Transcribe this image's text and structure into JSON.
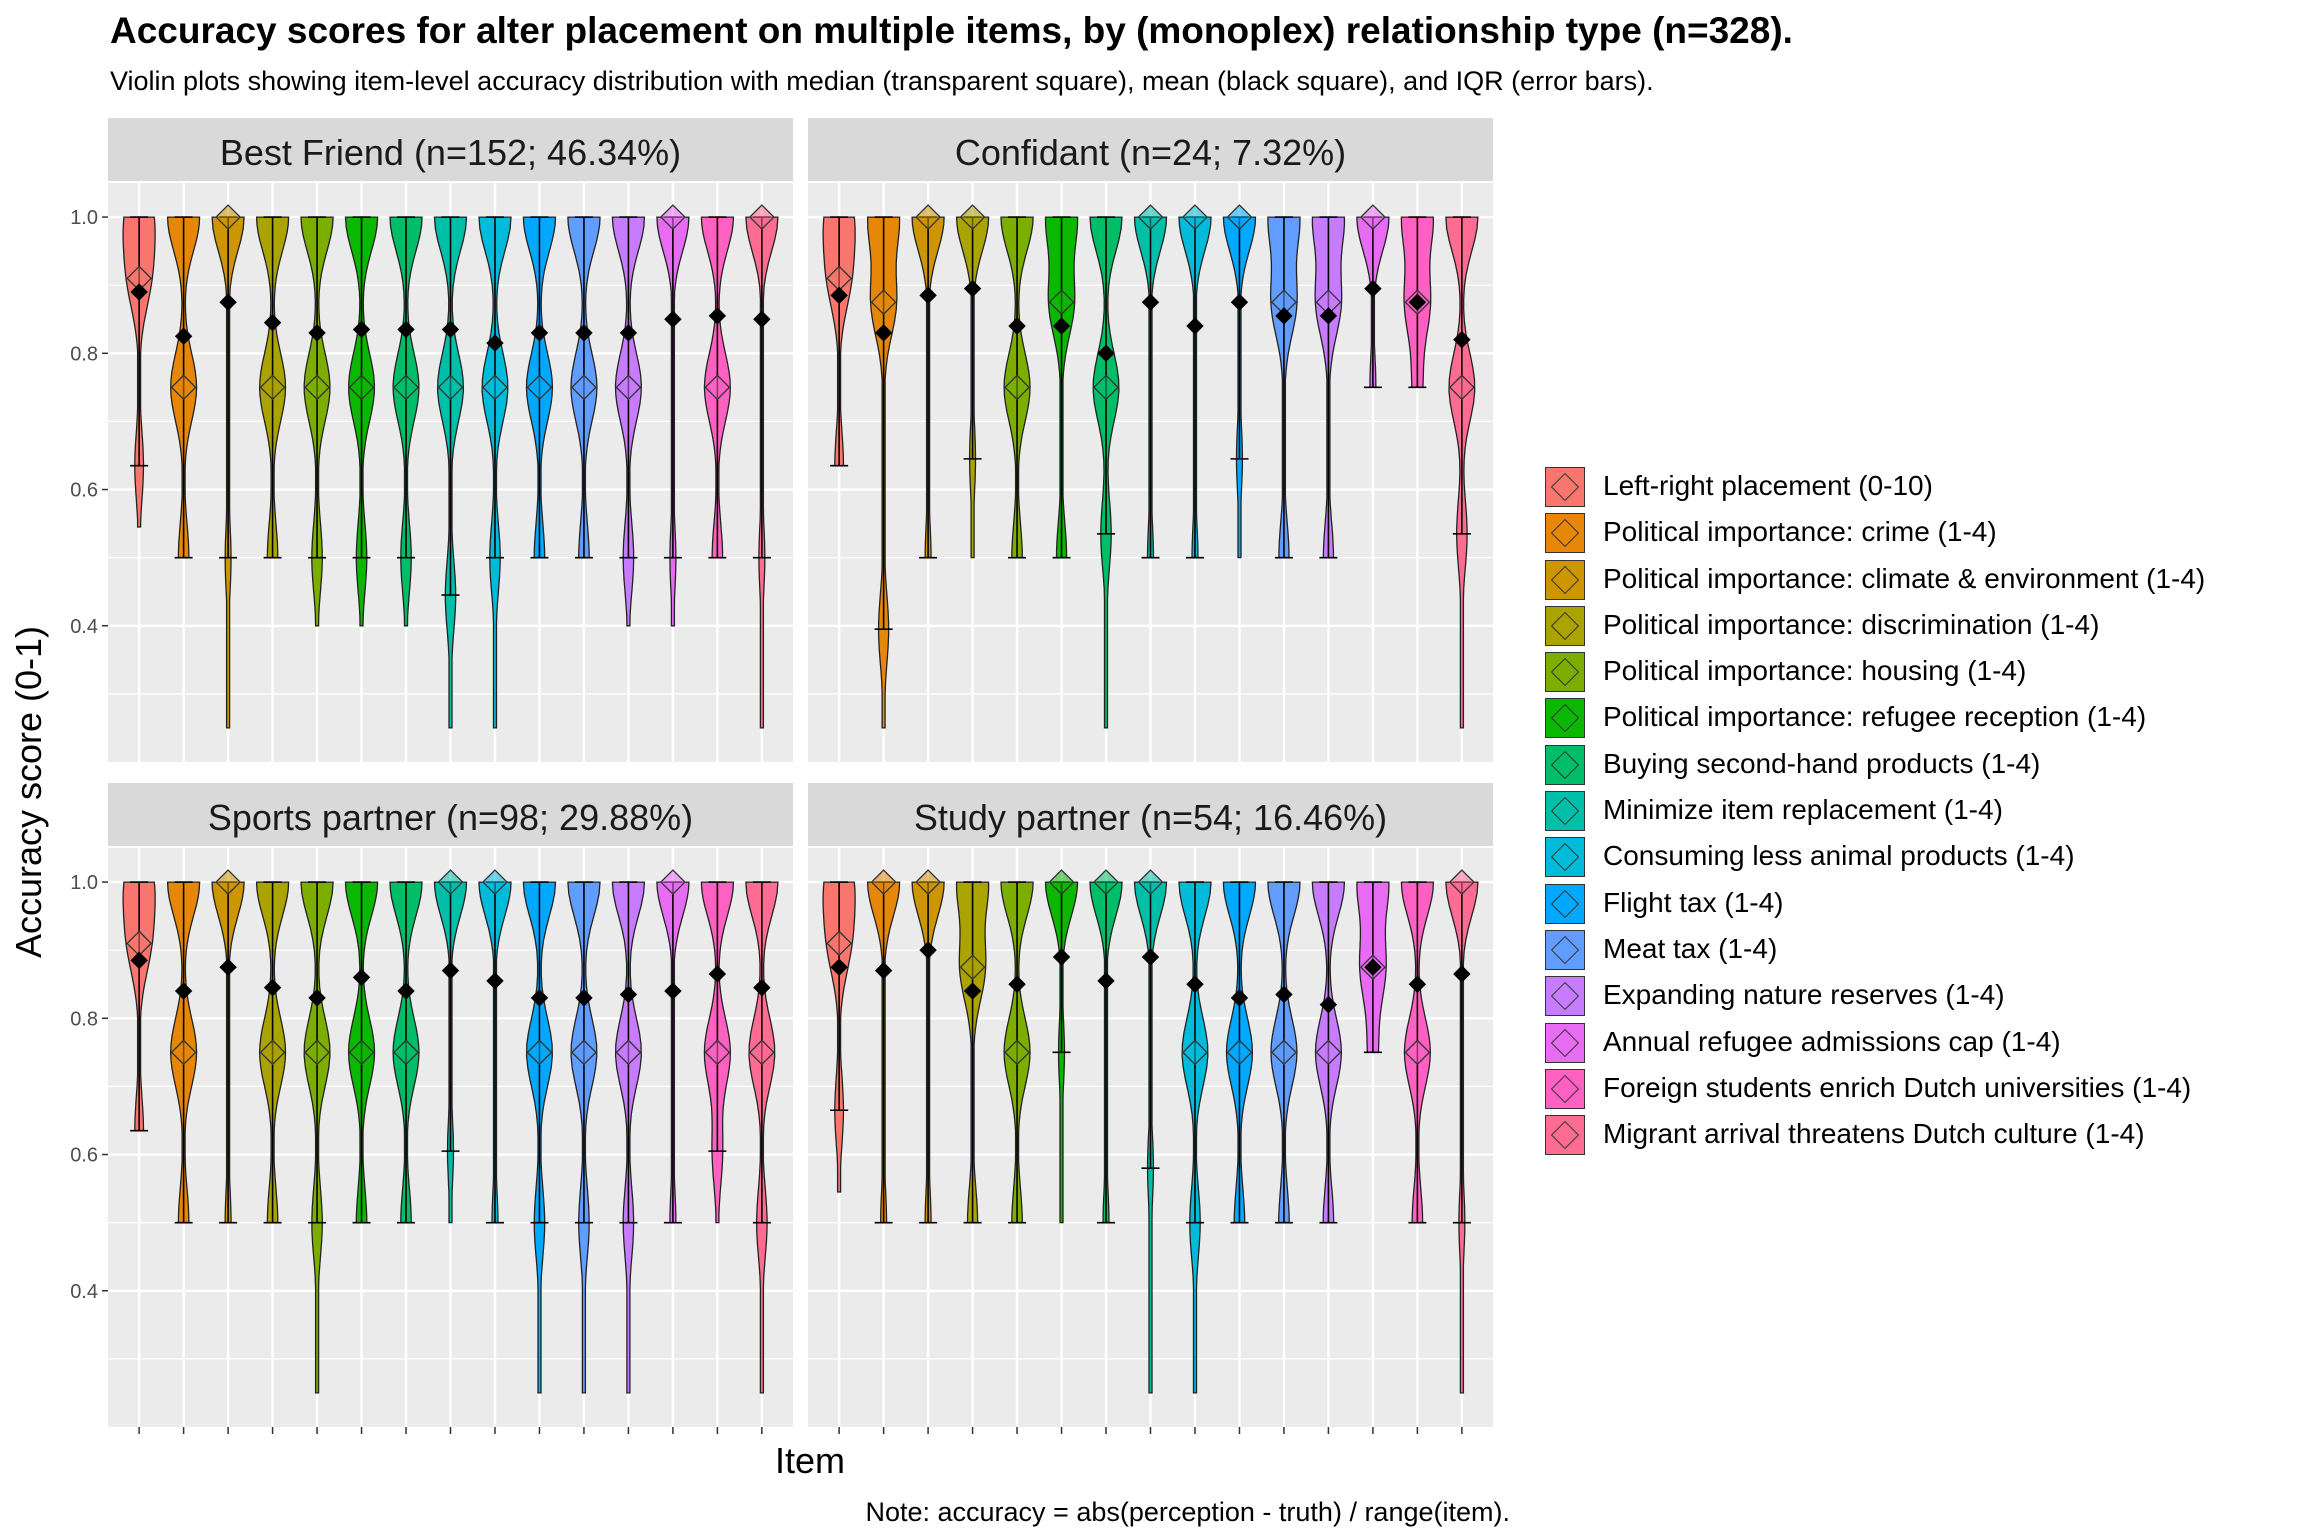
{
  "title": "Accuracy scores for alter placement on multiple items, by (monoplex) relationship type (n=328).",
  "subtitle": "Violin plots showing item-level accuracy distribution with median (transparent square), mean (black square), and IQR (error bars).",
  "caption": "Note: accuracy = abs(perception - truth) / range(item).",
  "chart_data": {
    "type": "violin",
    "xlabel": "Item",
    "ylabel": "Accuracy score (0-1)",
    "ylim": [
      0.2,
      1.05
    ],
    "yticks": [
      "0.4",
      "0.6",
      "0.8",
      "1.0"
    ],
    "grid": true,
    "legend_position": "right",
    "items": [
      {
        "name": "Left-right placement (0-10)",
        "color": "#F8766D"
      },
      {
        "name": "Political importance: crime (1-4)",
        "color": "#E6870A"
      },
      {
        "name": "Political importance: climate & environment (1-4)",
        "color": "#CD9600"
      },
      {
        "name": "Political importance: discrimination (1-4)",
        "color": "#ABA300"
      },
      {
        "name": "Political importance: housing (1-4)",
        "color": "#7CAE00"
      },
      {
        "name": "Political importance: refugee reception (1-4)",
        "color": "#0CB702"
      },
      {
        "name": "Buying second-hand products (1-4)",
        "color": "#00BE67"
      },
      {
        "name": "Minimize item replacement (1-4)",
        "color": "#00BFA9"
      },
      {
        "name": "Consuming less animal products (1-4)",
        "color": "#00BBDA"
      },
      {
        "name": "Flight tax (1-4)",
        "color": "#00A9FF"
      },
      {
        "name": "Meat tax (1-4)",
        "color": "#619CFF"
      },
      {
        "name": "Expanding nature reserves (1-4)",
        "color": "#C77CFF"
      },
      {
        "name": "Annual refugee admissions cap (1-4)",
        "color": "#E76BF3"
      },
      {
        "name": "Foreign students enrich Dutch universities (1-4)",
        "color": "#FF61C3"
      },
      {
        "name": "Migrant arrival threatens Dutch culture (1-4)",
        "color": "#FF6C91"
      }
    ],
    "facets": [
      {
        "label": "Best Friend (n=152; 46.34%)",
        "mean": [
          0.89,
          0.825,
          0.875,
          0.845,
          0.83,
          0.835,
          0.835,
          0.835,
          0.815,
          0.83,
          0.83,
          0.83,
          0.85,
          0.855,
          0.85
        ],
        "median": [
          0.91,
          0.75,
          1.0,
          0.75,
          0.75,
          0.75,
          0.75,
          0.75,
          0.75,
          0.75,
          0.75,
          0.75,
          1.0,
          0.75,
          1.0
        ],
        "q1": [
          0.635,
          0.5,
          0.5,
          0.5,
          0.5,
          0.5,
          0.5,
          0.445,
          0.5,
          0.5,
          0.5,
          0.5,
          0.5,
          0.5,
          0.5
        ],
        "q3": [
          1.0,
          1.0,
          1.0,
          1.0,
          1.0,
          1.0,
          1.0,
          1.0,
          1.0,
          1.0,
          1.0,
          1.0,
          1.0,
          1.0,
          1.0
        ],
        "min": [
          0.545,
          0.5,
          0.25,
          0.5,
          0.4,
          0.4,
          0.4,
          0.25,
          0.25,
          0.5,
          0.5,
          0.4,
          0.4,
          0.5,
          0.25
        ],
        "max": [
          1.0,
          1.0,
          1.0,
          1.0,
          1.0,
          1.0,
          1.0,
          1.0,
          1.0,
          1.0,
          1.0,
          1.0,
          1.0,
          1.0,
          1.0
        ]
      },
      {
        "label": "Confidant (n=24; 7.32%)",
        "mean": [
          0.885,
          0.83,
          0.885,
          0.895,
          0.84,
          0.84,
          0.8,
          0.875,
          0.84,
          0.875,
          0.855,
          0.855,
          0.895,
          0.875,
          0.82
        ],
        "median": [
          0.91,
          0.875,
          1.0,
          1.0,
          0.75,
          0.875,
          0.75,
          1.0,
          1.0,
          1.0,
          0.875,
          0.875,
          1.0,
          0.875,
          0.75
        ],
        "q1": [
          0.635,
          0.395,
          0.5,
          0.645,
          0.5,
          0.5,
          0.535,
          0.5,
          0.5,
          0.645,
          0.5,
          0.5,
          0.75,
          0.75,
          0.535
        ],
        "q3": [
          1.0,
          1.0,
          1.0,
          1.0,
          1.0,
          1.0,
          1.0,
          1.0,
          1.0,
          1.0,
          1.0,
          1.0,
          1.0,
          1.0,
          1.0
        ],
        "min": [
          0.635,
          0.25,
          0.5,
          0.5,
          0.5,
          0.5,
          0.25,
          0.5,
          0.5,
          0.5,
          0.5,
          0.5,
          0.75,
          0.75,
          0.25
        ],
        "max": [
          1.0,
          1.0,
          1.0,
          1.0,
          1.0,
          1.0,
          1.0,
          1.0,
          1.0,
          1.0,
          1.0,
          1.0,
          1.0,
          1.0,
          1.0
        ]
      },
      {
        "label": "Sports partner (n=98; 29.88%)",
        "mean": [
          0.885,
          0.84,
          0.875,
          0.845,
          0.83,
          0.86,
          0.84,
          0.87,
          0.855,
          0.83,
          0.83,
          0.835,
          0.84,
          0.865,
          0.845
        ],
        "median": [
          0.91,
          0.75,
          1.0,
          0.75,
          0.75,
          0.75,
          0.75,
          1.0,
          1.0,
          0.75,
          0.75,
          0.75,
          1.0,
          0.75,
          0.75
        ],
        "q1": [
          0.635,
          0.5,
          0.5,
          0.5,
          0.5,
          0.5,
          0.5,
          0.605,
          0.5,
          0.5,
          0.5,
          0.5,
          0.5,
          0.605,
          0.5
        ],
        "q3": [
          1.0,
          1.0,
          1.0,
          1.0,
          1.0,
          1.0,
          1.0,
          1.0,
          1.0,
          1.0,
          1.0,
          1.0,
          1.0,
          1.0,
          1.0
        ],
        "min": [
          0.635,
          0.5,
          0.5,
          0.5,
          0.25,
          0.5,
          0.5,
          0.5,
          0.5,
          0.25,
          0.25,
          0.25,
          0.5,
          0.5,
          0.25
        ],
        "max": [
          1.0,
          1.0,
          1.0,
          1.0,
          1.0,
          1.0,
          1.0,
          1.0,
          1.0,
          1.0,
          1.0,
          1.0,
          1.0,
          1.0,
          1.0
        ]
      },
      {
        "label": "Study partner (n=54; 16.46%)",
        "mean": [
          0.875,
          0.87,
          0.9,
          0.84,
          0.85,
          0.89,
          0.855,
          0.89,
          0.85,
          0.83,
          0.835,
          0.82,
          0.875,
          0.85,
          0.865
        ],
        "median": [
          0.91,
          1.0,
          1.0,
          0.875,
          0.75,
          1.0,
          1.0,
          1.0,
          0.75,
          0.75,
          0.75,
          0.75,
          0.875,
          0.75,
          1.0
        ],
        "q1": [
          0.665,
          0.5,
          0.5,
          0.5,
          0.5,
          0.75,
          0.5,
          0.58,
          0.5,
          0.5,
          0.5,
          0.5,
          0.75,
          0.5,
          0.5
        ],
        "q3": [
          1.0,
          1.0,
          1.0,
          1.0,
          1.0,
          1.0,
          1.0,
          1.0,
          1.0,
          1.0,
          1.0,
          1.0,
          1.0,
          1.0,
          1.0
        ],
        "min": [
          0.545,
          0.5,
          0.5,
          0.5,
          0.5,
          0.5,
          0.5,
          0.25,
          0.25,
          0.5,
          0.5,
          0.5,
          0.75,
          0.5,
          0.25
        ],
        "max": [
          1.0,
          1.0,
          1.0,
          1.0,
          1.0,
          1.0,
          1.0,
          1.0,
          1.0,
          1.0,
          1.0,
          1.0,
          1.0,
          1.0,
          1.0
        ]
      }
    ]
  }
}
